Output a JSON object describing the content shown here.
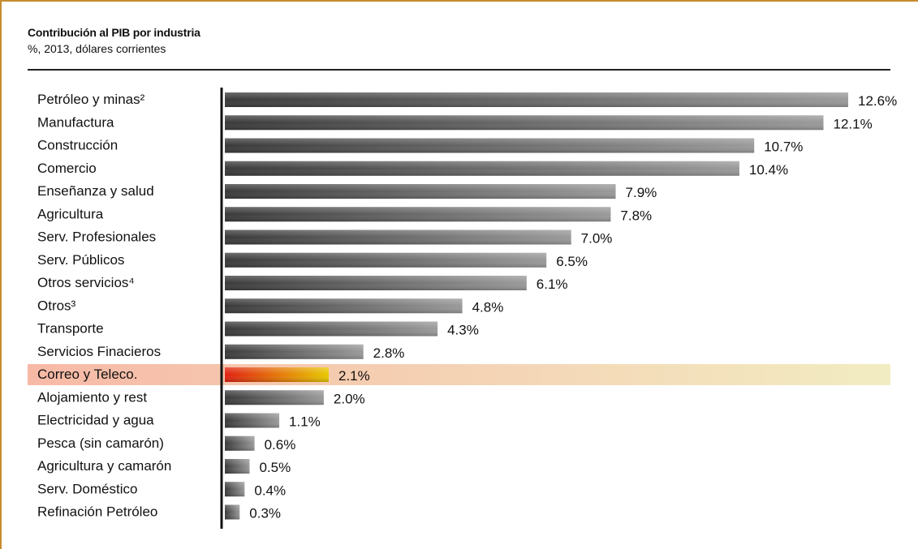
{
  "title": "Contribución al PIB por industria",
  "subtitle": "%, 2013, dólares corrientes",
  "chart_data": {
    "type": "bar",
    "orientation": "horizontal",
    "categories": [
      "Petróleo y minas²",
      "Manufactura",
      "Construcción",
      "Comercio",
      "Enseñanza y salud",
      "Agricultura",
      "Serv. Profesionales",
      "Serv. Públicos",
      "Otros servicios⁴",
      "Otros³",
      "Transporte",
      "Servicios Finacieros",
      "Correo y Teleco.",
      "Alojamiento y rest",
      "Electricidad y agua",
      "Pesca (sin camarón)",
      "Agricultura y camarón",
      "Serv. Doméstico",
      "Refinación Petróleo"
    ],
    "values": [
      12.6,
      12.1,
      10.7,
      10.4,
      7.9,
      7.8,
      7.0,
      6.5,
      6.1,
      4.8,
      4.3,
      2.8,
      2.1,
      2.0,
      1.1,
      0.6,
      0.5,
      0.4,
      0.3
    ],
    "labels": [
      "12.6%",
      "12.1%",
      "10.7%",
      "10.4%",
      "7.9%",
      "7.8%",
      "7.0%",
      "6.5%",
      "6.1%",
      "4.8%",
      "4.3%",
      "2.8%",
      "2.1%",
      "2.0%",
      "1.1%",
      "0.6%",
      "0.5%",
      "0.4%",
      "0.3%"
    ],
    "highlight": "Correo y Teleco.",
    "xlim": [
      0,
      12.6
    ],
    "grid": false,
    "legend": "none",
    "colors": {
      "bar_dark": "#3a3a3a",
      "bar_light": "#9a9a9a",
      "highlight_start": "#e02010",
      "highlight_end": "#e8c800",
      "highlight_band_left": "#f7b9a6",
      "highlight_band_right": "#f2ecc2",
      "frame": "#c98b2e"
    }
  }
}
